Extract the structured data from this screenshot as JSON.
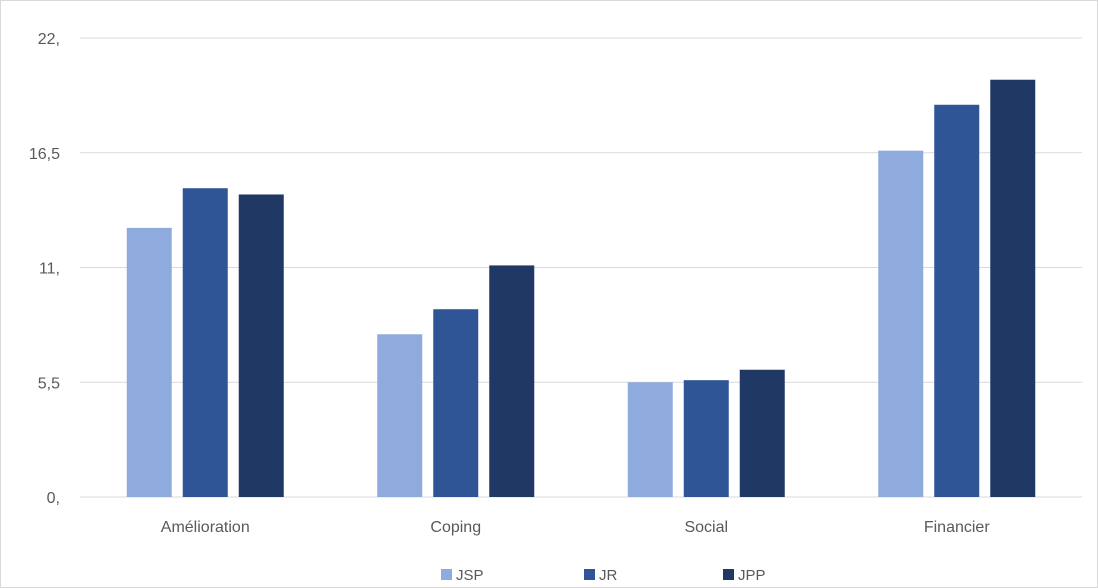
{
  "chart_data": {
    "type": "bar",
    "title": "",
    "xlabel": "",
    "ylabel": "",
    "categories": [
      "Amélioration",
      "Coping",
      "Social",
      "Financier"
    ],
    "series": [
      {
        "name": "JSP",
        "color": "#8faadc",
        "values": [
          12.9,
          7.8,
          5.5,
          16.6
        ]
      },
      {
        "name": "JR",
        "color": "#2f5597",
        "values": [
          14.8,
          9.0,
          5.6,
          18.8
        ]
      },
      {
        "name": "JPP",
        "color": "#203864",
        "values": [
          14.5,
          11.1,
          6.1,
          20.0
        ]
      }
    ],
    "ylim": [
      0,
      22
    ],
    "yticks": [
      0,
      5.5,
      11,
      16.5,
      22
    ],
    "ytick_labels": [
      "0,",
      "5,5",
      "11,",
      "16,5",
      "22,"
    ],
    "grid": true,
    "legend_position": "bottom"
  }
}
